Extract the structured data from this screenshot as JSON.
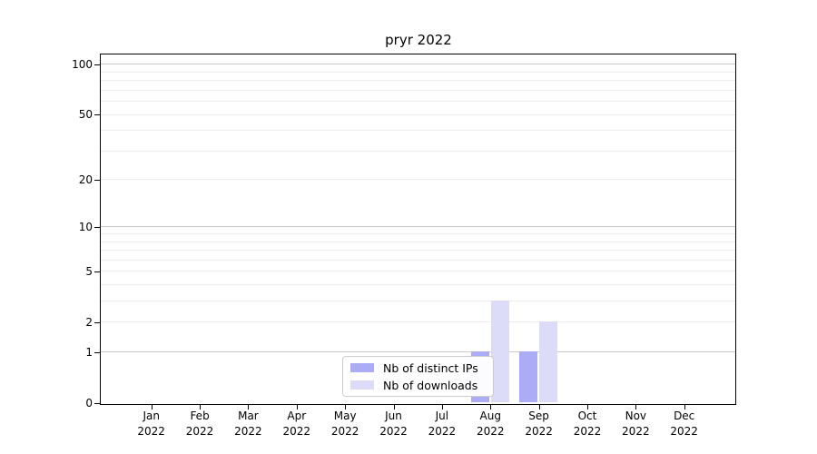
{
  "title": "pryr 2022",
  "chart_data": {
    "type": "bar",
    "title": "pryr 2022",
    "categories": [
      "Jan 2022",
      "Feb 2022",
      "Mar 2022",
      "Apr 2022",
      "May 2022",
      "Jun 2022",
      "Jul 2022",
      "Aug 2022",
      "Sep 2022",
      "Oct 2022",
      "Nov 2022",
      "Dec 2022"
    ],
    "series": [
      {
        "name": "Nb of distinct IPs",
        "color": "#acacf6",
        "values": [
          0,
          0,
          0,
          0,
          0,
          0,
          0,
          1,
          1,
          0,
          0,
          0
        ]
      },
      {
        "name": "Nb of downloads",
        "color": "#dcdcf9",
        "values": [
          0,
          0,
          0,
          0,
          0,
          0,
          0,
          3,
          2,
          0,
          0,
          0
        ]
      }
    ],
    "xlabel": "",
    "ylabel": "",
    "yscale": "log1p",
    "ylim": [
      0,
      114
    ],
    "yticks": [
      0,
      1,
      2,
      5,
      10,
      20,
      50,
      100
    ],
    "major_gridlines": [
      1,
      10,
      100
    ],
    "minor_gridlines": [
      2,
      3,
      4,
      5,
      6,
      7,
      8,
      9,
      20,
      30,
      40,
      50,
      60,
      70,
      80,
      90
    ],
    "grid": true,
    "legend_position": "inside lower-center",
    "colors": {
      "grid_major": "#c9c9c9",
      "grid_minor": "#ececec",
      "axis_frame": "#000000",
      "legend_border": "#cccccc",
      "background": "#ffffff"
    }
  }
}
